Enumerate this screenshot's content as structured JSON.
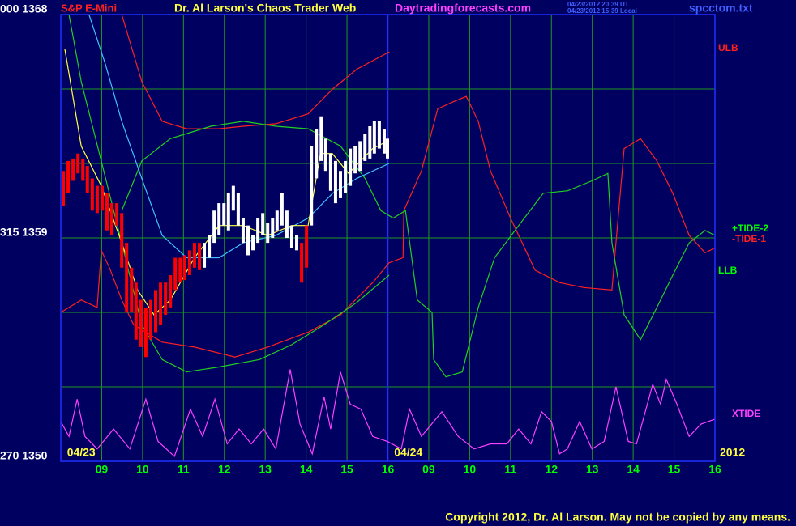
{
  "chart_data": {
    "type": "price",
    "header": {
      "symbol": "S&P E-Mini",
      "title": "Dr. Al Larson's Chaos Trader Web",
      "site": "Daytradingforecasts.com",
      "stamp_ut": "04/23/2012 20:39 UT",
      "stamp_local": "04/23/2012 15:39 Local",
      "file": "spcctom.txt"
    },
    "copyright": "Copyright 2012, Dr. Al Larson. May not be copied by any means.",
    "xlim": [
      0,
      16
    ],
    "ylim": [
      1350,
      1368
    ],
    "yticks": [
      {
        "value": 1368,
        "label": "000 1368"
      },
      {
        "value": 1359,
        "label": "315 1359"
      },
      {
        "value": 1350,
        "label": "270 1350"
      }
    ],
    "ygrid": [
      1365,
      1362,
      1356,
      1353
    ],
    "xticks": [
      {
        "value": 1,
        "label": "09"
      },
      {
        "value": 2,
        "label": "10"
      },
      {
        "value": 3,
        "label": "11"
      },
      {
        "value": 4,
        "label": "12"
      },
      {
        "value": 5,
        "label": "13"
      },
      {
        "value": 6,
        "label": "14"
      },
      {
        "value": 7,
        "label": "15"
      },
      {
        "value": 8,
        "label": "16"
      },
      {
        "value": 9,
        "label": "09"
      },
      {
        "value": 10,
        "label": "10"
      },
      {
        "value": 11,
        "label": "11"
      },
      {
        "value": 12,
        "label": "12"
      },
      {
        "value": 13,
        "label": "13"
      },
      {
        "value": 14,
        "label": "14"
      },
      {
        "value": 15,
        "label": "15"
      },
      {
        "value": 16,
        "label": "16"
      }
    ],
    "day_break": 8,
    "day_labels": [
      {
        "value": 0.5,
        "label": "04/23"
      },
      {
        "value": 8.5,
        "label": "04/24"
      }
    ],
    "year": "2012",
    "annotations": [
      {
        "text": "ULB",
        "color": "#ff2020"
      },
      {
        "text": "+TIDE-2",
        "color": "#00ff00"
      },
      {
        "text": "-TIDE-1",
        "color": "#ff2020"
      },
      {
        "text": "LLB",
        "color": "#00ff00"
      },
      {
        "text": "XTIDE",
        "color": "#ff40ff"
      }
    ],
    "grid": true,
    "bar_series": [
      {
        "color": "#ff0000",
        "x": [
          0.06,
          0.18,
          0.3,
          0.42,
          0.54,
          0.65,
          0.77,
          0.89,
          1.01,
          1.13,
          1.25,
          1.37,
          1.49,
          1.61,
          1.73,
          1.84,
          1.96,
          2.08,
          2.2,
          2.32,
          2.44,
          2.56,
          2.68,
          2.8,
          2.92,
          3.03,
          3.15,
          3.27,
          3.39,
          5.89,
          6.01
        ],
        "high": [
          1361.7,
          1362.1,
          1362.2,
          1362.4,
          1362.2,
          1361.9,
          1361.4,
          1361.1,
          1361.1,
          1360.8,
          1360.4,
          1360.4,
          1360.0,
          1358.8,
          1357.8,
          1357.2,
          1356.5,
          1356.2,
          1356.5,
          1356.9,
          1357.2,
          1357.2,
          1357.5,
          1358.2,
          1358.2,
          1358.3,
          1358.5,
          1358.8,
          1358.8,
          1358.8,
          1359.5
        ],
        "low": [
          1360.3,
          1360.8,
          1361.3,
          1361.6,
          1361.3,
          1360.8,
          1360.1,
          1360.0,
          1360.1,
          1359.3,
          1359.1,
          1359.5,
          1357.8,
          1356.0,
          1356.0,
          1354.9,
          1354.6,
          1354.2,
          1354.9,
          1355.2,
          1355.5,
          1355.9,
          1356.2,
          1356.9,
          1357.2,
          1357.3,
          1357.5,
          1357.8,
          1357.7,
          1357.2,
          1357.8
        ]
      },
      {
        "color": "#ffffff",
        "x": [
          3.51,
          3.63,
          3.75,
          3.87,
          3.99,
          4.1,
          4.22,
          4.34,
          4.46,
          4.58,
          4.7,
          4.82,
          4.94,
          5.06,
          5.18,
          5.29,
          5.41,
          5.53,
          5.65,
          5.77,
          6.13,
          6.25,
          6.37,
          6.48,
          6.6,
          6.72,
          6.84,
          6.96,
          7.08,
          7.2,
          7.32,
          7.44,
          7.56,
          7.67,
          7.79,
          7.91,
          7.99
        ],
        "high": [
          1358.8,
          1359.1,
          1360.1,
          1360.4,
          1360.4,
          1360.8,
          1361.1,
          1360.8,
          1359.8,
          1359.5,
          1359.1,
          1359.8,
          1360.0,
          1359.6,
          1359.8,
          1360.1,
          1360.8,
          1360.1,
          1359.5,
          1359.1,
          1362.7,
          1363.4,
          1363.9,
          1363.0,
          1362.4,
          1362.1,
          1361.7,
          1362.1,
          1362.6,
          1362.7,
          1362.9,
          1363.2,
          1363.5,
          1363.7,
          1363.7,
          1363.4,
          1363.0
        ],
        "low": [
          1357.8,
          1358.2,
          1358.8,
          1359.1,
          1359.5,
          1359.3,
          1360.1,
          1359.5,
          1358.8,
          1358.3,
          1358.5,
          1358.8,
          1359.1,
          1358.8,
          1359.0,
          1359.3,
          1359.5,
          1359.0,
          1358.6,
          1358.5,
          1359.5,
          1361.4,
          1362.1,
          1361.7,
          1360.9,
          1360.4,
          1360.6,
          1360.8,
          1361.1,
          1361.6,
          1361.7,
          1362.1,
          1362.2,
          1362.4,
          1362.6,
          1362.4,
          1362.2
        ]
      }
    ],
    "series": [
      {
        "color": "#ff2020",
        "x": [
          1.49,
          1.98,
          2.48,
          3.08,
          3.87,
          4.46,
          5.26,
          6.05,
          6.65,
          7.24,
          8.04,
          null,
          0,
          0.5,
          0.89,
          0.99,
          1.19,
          1.49,
          1.78,
          2.48,
          3.27,
          4.26,
          5.06,
          6.05,
          6.84,
          7.63,
          8.03,
          8.37,
          8.39,
          8.82,
          9.22,
          9.62,
          9.92,
          10.21,
          10.51,
          11.0,
          11.6,
          12.2,
          12.79,
          13.48,
          13.58,
          13.78,
          14.18,
          14.58,
          14.97,
          15.37,
          15.76,
          16.0
        ],
        "values": [
          1368,
          1365.3,
          1363.7,
          1363.4,
          1363.4,
          1363.5,
          1363.6,
          1364.0,
          1365.0,
          1365.8,
          1366.5,
          null,
          1356.0,
          1356.5,
          1356.2,
          1358.5,
          1357.8,
          1356.5,
          1355.5,
          1354.8,
          1354.6,
          1354.2,
          1354.6,
          1355.2,
          1355.9,
          1357.2,
          1358.0,
          1358.2,
          1360.1,
          1361.7,
          1364.2,
          1364.5,
          1364.7,
          1363.7,
          1361.7,
          1359.8,
          1357.7,
          1357.2,
          1357.0,
          1356.9,
          1358.8,
          1362.6,
          1363.0,
          1362.1,
          1360.8,
          1359.1,
          1358.4,
          1358.6
        ]
      },
      {
        "color": "#20d020",
        "x": [
          0.2,
          0.5,
          0.99,
          1.49,
          1.98,
          2.48,
          3.08,
          3.87,
          4.86,
          5.65,
          6.44,
          7.24,
          8.03
        ],
        "values": [
          1368,
          1365.3,
          1362.1,
          1358.8,
          1355.5,
          1354.1,
          1353.6,
          1353.8,
          1354.1,
          1354.7,
          1355.5,
          1356.4,
          1357.5
        ]
      },
      {
        "color": "#20d020",
        "x": [
          1.49,
          1.98,
          2.68,
          3.67,
          4.46,
          5.26,
          6.05,
          6.84,
          7.44,
          7.83,
          8.13,
          8.43,
          8.72,
          9.08,
          9.12,
          9.42,
          9.82,
          10.21,
          10.61,
          11.2,
          11.8,
          12.4,
          12.99,
          13.38,
          13.48,
          13.78,
          14.18,
          14.58,
          14.97,
          15.37,
          15.76,
          16.0
        ],
        "values": [
          1360.1,
          1362.1,
          1363.0,
          1363.5,
          1363.7,
          1363.5,
          1363.4,
          1362.7,
          1361.4,
          1360.1,
          1359.8,
          1360.1,
          1356.5,
          1356.0,
          1354.1,
          1353.4,
          1353.6,
          1356.2,
          1358.2,
          1359.5,
          1360.8,
          1360.9,
          1361.3,
          1361.6,
          1358.8,
          1355.9,
          1354.9,
          1356.2,
          1357.5,
          1358.8,
          1359.3,
          1359.1
        ]
      },
      {
        "color": "#40c0ff",
        "x": [
          0.69,
          1.09,
          1.49,
          1.98,
          2.48,
          3.08,
          3.87,
          4.46,
          5.26,
          6.05,
          6.65,
          7.24,
          8.03
        ],
        "values": [
          1368,
          1366.0,
          1363.7,
          1361.4,
          1359.1,
          1358.2,
          1358.2,
          1358.8,
          1359.1,
          1359.8,
          1360.8,
          1361.4,
          1362.0
        ]
      },
      {
        "color": "#ffff40",
        "x": [
          0.1,
          0.5,
          0.99,
          1.49,
          1.88,
          2.28,
          2.68,
          3.27,
          3.87,
          4.46,
          5.06,
          5.65,
          6.05,
          6.35,
          6.64,
          7.04,
          7.63,
          7.99
        ],
        "values": [
          1366.6,
          1362.7,
          1361.1,
          1358.8,
          1356.9,
          1355.9,
          1356.5,
          1358.2,
          1359.5,
          1359.5,
          1359.1,
          1359.5,
          1359.5,
          1362.4,
          1362.4,
          1361.6,
          1362.6,
          1362.9
        ]
      },
      {
        "color": "#ff40ff",
        "x": [
          0,
          0.2,
          0.4,
          0.59,
          0.89,
          1.29,
          1.69,
          2.08,
          2.38,
          2.78,
          3.17,
          3.47,
          3.77,
          4.07,
          4.36,
          4.66,
          4.96,
          5.26,
          5.61,
          5.85,
          6.15,
          6.44,
          6.6,
          6.84,
          7.08,
          7.34,
          7.63,
          7.99,
          8.33,
          8.53,
          8.82,
          9.32,
          9.72,
          10.11,
          10.51,
          10.91,
          11.2,
          11.5,
          11.76,
          12.0,
          12.2,
          12.39,
          12.69,
          12.99,
          13.29,
          13.58,
          13.88,
          14.08,
          14.48,
          14.67,
          14.81,
          15.07,
          15.37,
          15.66,
          16.0
        ],
        "values": [
          1351.6,
          1351.0,
          1352.5,
          1351.0,
          1350.5,
          1351.3,
          1350.5,
          1352.5,
          1350.8,
          1350.2,
          1352.1,
          1351.0,
          1352.5,
          1350.7,
          1351.3,
          1350.7,
          1351.3,
          1350.5,
          1353.7,
          1351.5,
          1350.3,
          1352.6,
          1351.3,
          1353.6,
          1352.3,
          1352.1,
          1351.0,
          1350.8,
          1350.5,
          1352.1,
          1351.0,
          1352.0,
          1351.0,
          1350.5,
          1350.7,
          1350.7,
          1351.3,
          1350.7,
          1352.0,
          1351.6,
          1350.3,
          1350.5,
          1351.6,
          1350.5,
          1350.8,
          1353.0,
          1350.8,
          1350.7,
          1353.1,
          1352.3,
          1353.3,
          1352.3,
          1351.0,
          1351.5,
          1351.7
        ]
      }
    ]
  }
}
